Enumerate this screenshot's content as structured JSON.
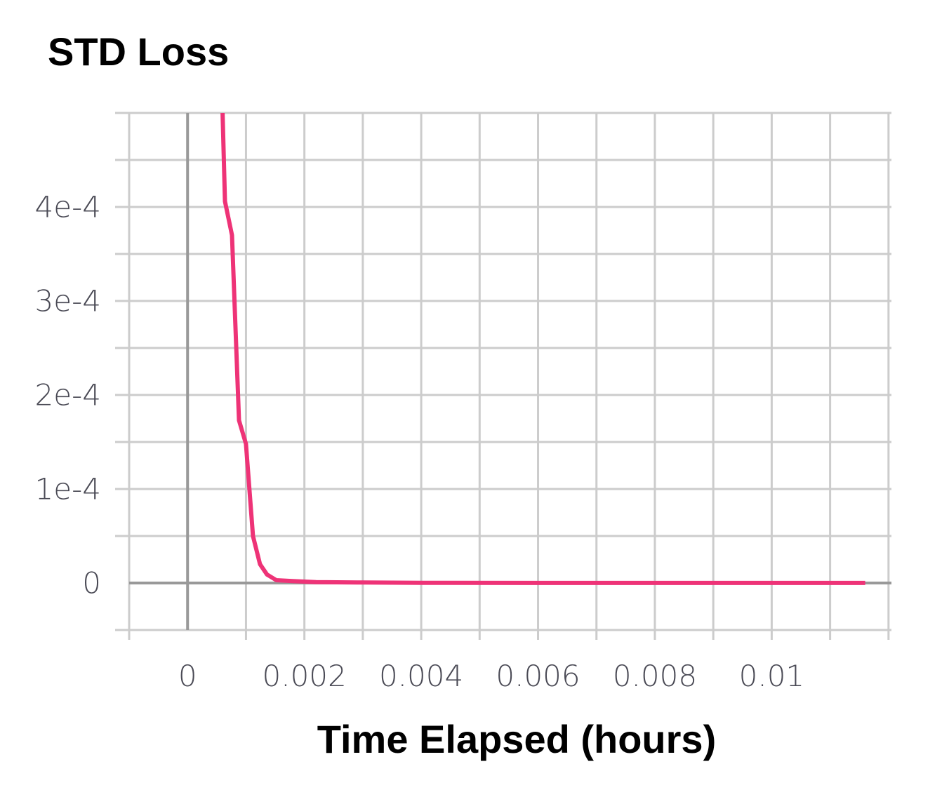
{
  "chart_data": {
    "type": "line",
    "title": "STD Loss",
    "xlabel": "Time Elapsed (hours)",
    "ylabel": "",
    "xlim": [
      -0.001,
      0.01205
    ],
    "ylim": [
      -5e-05,
      0.0005
    ],
    "x_ticks": [
      0,
      0.002,
      0.004,
      0.006,
      0.008,
      0.01
    ],
    "x_tick_labels": [
      "0",
      "0.002",
      "0.004",
      "0.006",
      "0.008",
      "0.01"
    ],
    "y_ticks": [
      0,
      0.0001,
      0.0002,
      0.0003,
      0.0004
    ],
    "y_tick_labels": [
      "0",
      "1e-4",
      "2e-4",
      "3e-4",
      "4e-4"
    ],
    "grid": true,
    "colors": {
      "series": "#ee3377",
      "grid": "#cccccc",
      "zero_line": "#999999",
      "tick_text": "#4a4a55"
    },
    "series": [
      {
        "x": [
          0.0006,
          0.00064,
          0.00076,
          0.00088,
          0.001,
          0.00112,
          0.00124,
          0.00136,
          0.00152,
          0.0018,
          0.0022,
          0.003,
          0.004,
          0.006,
          0.008,
          0.01,
          0.0116
        ],
        "y": [
          0.0005,
          0.000406,
          0.00037,
          0.000173,
          0.000148,
          5e-05,
          2e-05,
          9e-06,
          3e-06,
          2e-06,
          1e-06,
          5e-07,
          2e-07,
          1e-07,
          1e-07,
          1e-07,
          1e-07
        ]
      }
    ]
  }
}
